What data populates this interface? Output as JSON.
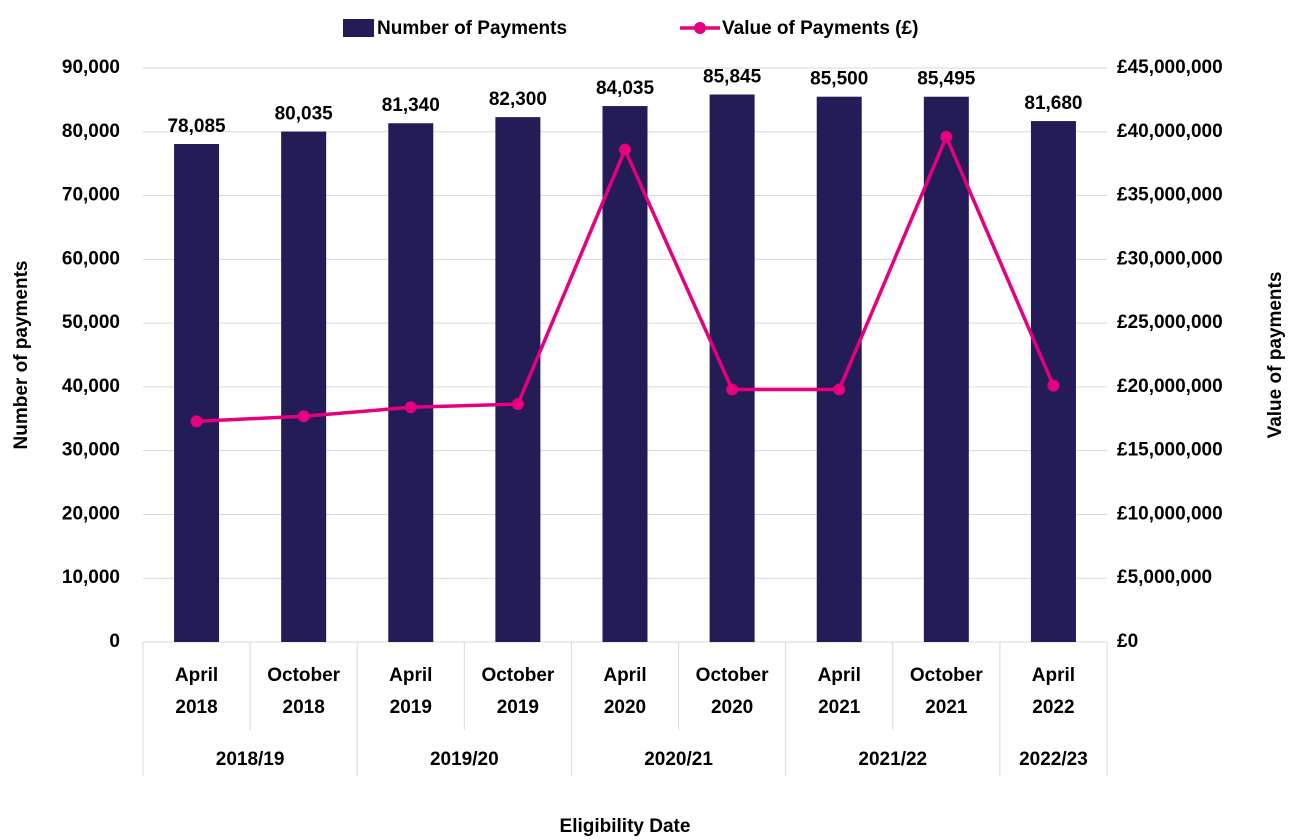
{
  "chart_data": {
    "type": "bar-line",
    "x_label": "Eligibility Date",
    "y_label": "Number of payments",
    "y2_label": "Value of payments",
    "categories": [
      "April 2018",
      "October 2018",
      "April 2019",
      "October 2019",
      "April 2020",
      "October 2020",
      "April 2021",
      "October 2021",
      "April 2022"
    ],
    "groups": [
      {
        "name": "2018/19",
        "count": 2
      },
      {
        "name": "2019/20",
        "count": 2
      },
      {
        "name": "2020/21",
        "count": 2
      },
      {
        "name": "2021/22",
        "count": 2
      },
      {
        "name": "2022/23",
        "count": 1
      }
    ],
    "series": [
      {
        "name": "Number of Payments",
        "type": "bar",
        "color": "#241c56",
        "values": [
          78085,
          80035,
          81340,
          82300,
          84035,
          85845,
          85500,
          85495,
          81680
        ],
        "value_labels": [
          "78,085",
          "80,035",
          "81,340",
          "82,300",
          "84,035",
          "85,845",
          "85,500",
          "85,495",
          "81,680"
        ]
      },
      {
        "name": "Value of Payments (£)",
        "type": "line",
        "axis": "y2",
        "color": "#e6007e",
        "values": [
          17300000,
          17700000,
          18400000,
          18650000,
          38600000,
          19800000,
          19800000,
          39600000,
          20100000
        ]
      }
    ],
    "ylim": [
      0,
      90000
    ],
    "yticks": [
      {
        "value": 0,
        "label": "0"
      },
      {
        "value": 10000,
        "label": "10,000"
      },
      {
        "value": 20000,
        "label": "20,000"
      },
      {
        "value": 30000,
        "label": "30,000"
      },
      {
        "value": 40000,
        "label": "40,000"
      },
      {
        "value": 50000,
        "label": "50,000"
      },
      {
        "value": 60000,
        "label": "60,000"
      },
      {
        "value": 70000,
        "label": "70,000"
      },
      {
        "value": 80000,
        "label": "80,000"
      },
      {
        "value": 90000,
        "label": "90,000"
      }
    ],
    "y2lim": [
      0,
      45000000
    ],
    "y2ticks": [
      {
        "value": 0,
        "label": "£0"
      },
      {
        "value": 5000000,
        "label": "£5,000,000"
      },
      {
        "value": 10000000,
        "label": "£10,000,000"
      },
      {
        "value": 15000000,
        "label": "£15,000,000"
      },
      {
        "value": 20000000,
        "label": "£20,000,000"
      },
      {
        "value": 25000000,
        "label": "£25,000,000"
      },
      {
        "value": 30000000,
        "label": "£30,000,000"
      },
      {
        "value": 35000000,
        "label": "£35,000,000"
      },
      {
        "value": 40000000,
        "label": "£40,000,000"
      },
      {
        "value": 45000000,
        "label": "£45,000,000"
      }
    ],
    "grid": true,
    "legend": "top"
  }
}
